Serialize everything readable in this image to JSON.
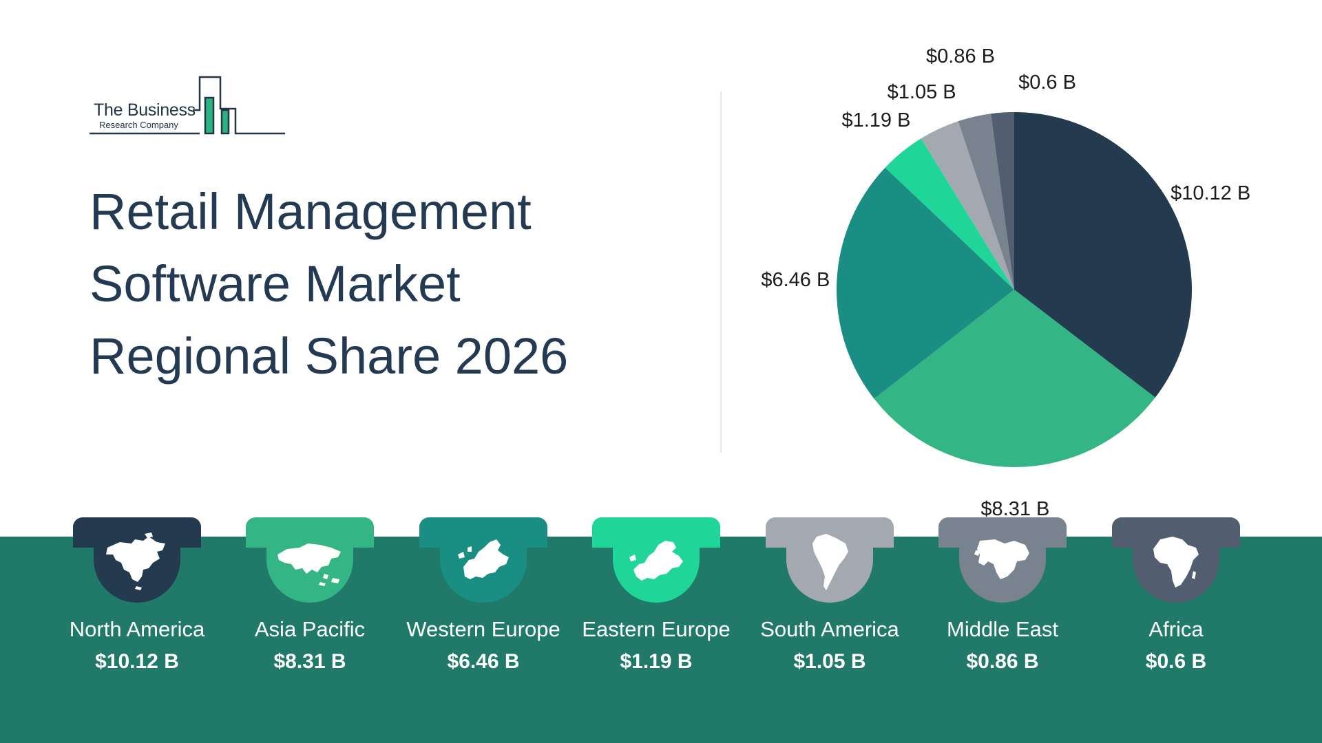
{
  "brand": {
    "name": "The Business",
    "subtitle": "Research Company"
  },
  "title_lines": [
    "Retail Management",
    "Software Market",
    "Regional Share 2026"
  ],
  "colors": {
    "band": "#217a69",
    "title": "#243a52"
  },
  "chart_data": {
    "type": "pie",
    "title": "Retail Management Software Market Regional Share 2026",
    "unit": "$ B",
    "slices": [
      {
        "name": "North America",
        "value": 10.12,
        "label": "$10.12 B",
        "color": "#243a4f"
      },
      {
        "name": "Asia Pacific",
        "value": 8.31,
        "label": "$8.31 B",
        "color": "#33b585"
      },
      {
        "name": "Western Europe",
        "value": 6.46,
        "label": "$6.46 B",
        "color": "#1b8e84"
      },
      {
        "name": "Eastern Europe",
        "value": 1.19,
        "label": "$1.19 B",
        "color": "#1fd698"
      },
      {
        "name": "South America",
        "value": 1.05,
        "label": "$1.05 B",
        "color": "#a3a8b1"
      },
      {
        "name": "Middle East",
        "value": 0.86,
        "label": "$0.86 B",
        "color": "#79838f"
      },
      {
        "name": "Africa",
        "value": 0.6,
        "label": "$0.6 B",
        "color": "#525e70"
      }
    ]
  },
  "regions": [
    {
      "name": "North America",
      "value": "$10.12 B",
      "color": "#243a4f",
      "icon": "north-america-map-icon"
    },
    {
      "name": "Asia Pacific",
      "value": "$8.31 B",
      "color": "#33b585",
      "icon": "asia-pacific-map-icon"
    },
    {
      "name": "Western Europe",
      "value": "$6.46 B",
      "color": "#1b8e84",
      "icon": "western-europe-map-icon"
    },
    {
      "name": "Eastern Europe",
      "value": "$1.19 B",
      "color": "#1fd698",
      "icon": "eastern-europe-map-icon"
    },
    {
      "name": "South America",
      "value": "$1.05 B",
      "color": "#a3a8b1",
      "icon": "south-america-map-icon"
    },
    {
      "name": "Middle East",
      "value": "$0.86 B",
      "color": "#79838f",
      "icon": "middle-east-map-icon"
    },
    {
      "name": "Africa",
      "value": "$0.6 B",
      "color": "#525e70",
      "icon": "africa-map-icon"
    }
  ]
}
